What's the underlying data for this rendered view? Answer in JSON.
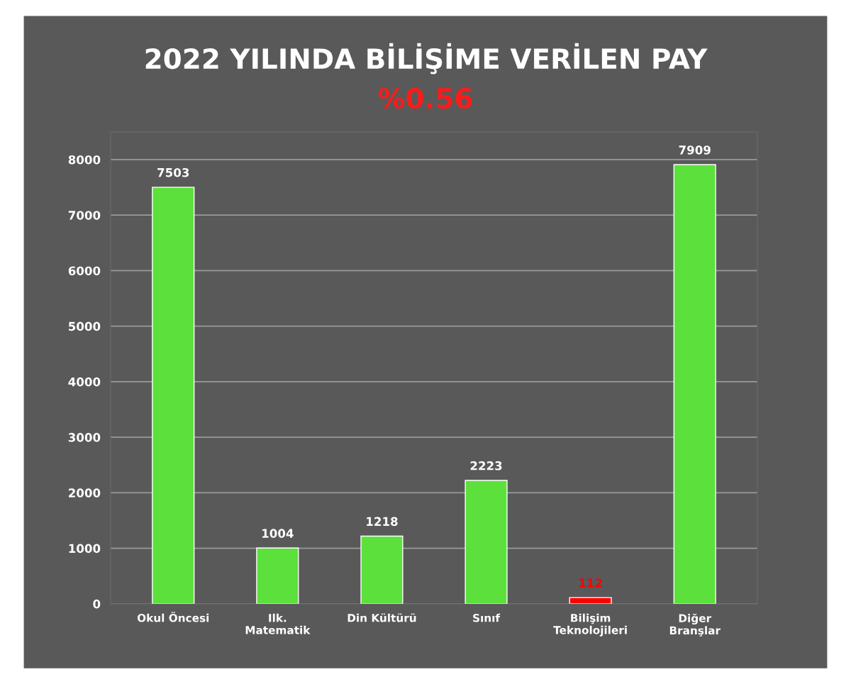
{
  "chart_data": {
    "type": "bar",
    "title": "2022 YILINDA BİLİŞİME VERİLEN PAY",
    "subtitle": "%0.56",
    "categories": [
      "Okul Öncesi",
      "Ilk.\nMatematik",
      "Din Kültürü",
      "Sınıf",
      "Bilişim\nTeknolojileri",
      "Diğer\nBranşlar"
    ],
    "values": [
      7503,
      1004,
      1218,
      2223,
      112,
      7909
    ],
    "colors": [
      "#5ce03c",
      "#5ce03c",
      "#5ce03c",
      "#5ce03c",
      "#ff0000",
      "#5ce03c"
    ],
    "ylim": [
      0,
      8500
    ],
    "yticks": [
      0,
      1000,
      2000,
      3000,
      4000,
      5000,
      6000,
      7000,
      8000
    ],
    "grid": "y",
    "data_labels": true,
    "legend": false
  }
}
